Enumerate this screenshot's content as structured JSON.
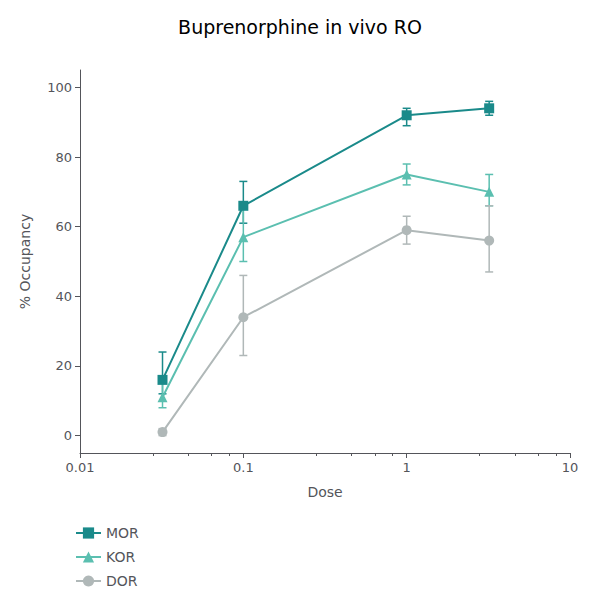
{
  "chart_data": {
    "type": "line",
    "title": "Buprenorphine in vivo RO",
    "x_label": "Dose",
    "y_label": "% Occupancy",
    "log": "x",
    "xlim": [
      0.01,
      10
    ],
    "xticks": [
      0.01,
      0.1,
      1,
      10
    ],
    "ylim": [
      -5,
      105
    ],
    "yticks": [
      0,
      20,
      40,
      60,
      80,
      100
    ],
    "grid": false,
    "legend": "lower left",
    "series": [
      {
        "name": "MOR",
        "color": "#1a8a8a",
        "marker": "square",
        "x": [
          0.032,
          0.1,
          1.0,
          3.2
        ],
        "values": [
          16,
          66,
          92,
          94
        ],
        "yerr_low": [
          4,
          5,
          3,
          2
        ],
        "yerr_high": [
          8,
          7,
          2,
          2
        ]
      },
      {
        "name": "KOR",
        "color": "#5bbfb0",
        "marker": "triangle",
        "x": [
          0.032,
          0.1,
          1.0,
          3.2
        ],
        "values": [
          11,
          57,
          75,
          70
        ],
        "yerr_low": [
          3,
          7,
          3,
          4
        ],
        "yerr_high": [
          5,
          8,
          3,
          5
        ]
      },
      {
        "name": "DOR",
        "color": "#b0b8b8",
        "marker": "circle",
        "x": [
          0.032,
          0.1,
          1.0,
          3.2
        ],
        "values": [
          1,
          34,
          59,
          56
        ],
        "yerr_low": [
          1,
          11,
          4,
          9
        ],
        "yerr_high": [
          1,
          12,
          4,
          10
        ]
      }
    ]
  }
}
